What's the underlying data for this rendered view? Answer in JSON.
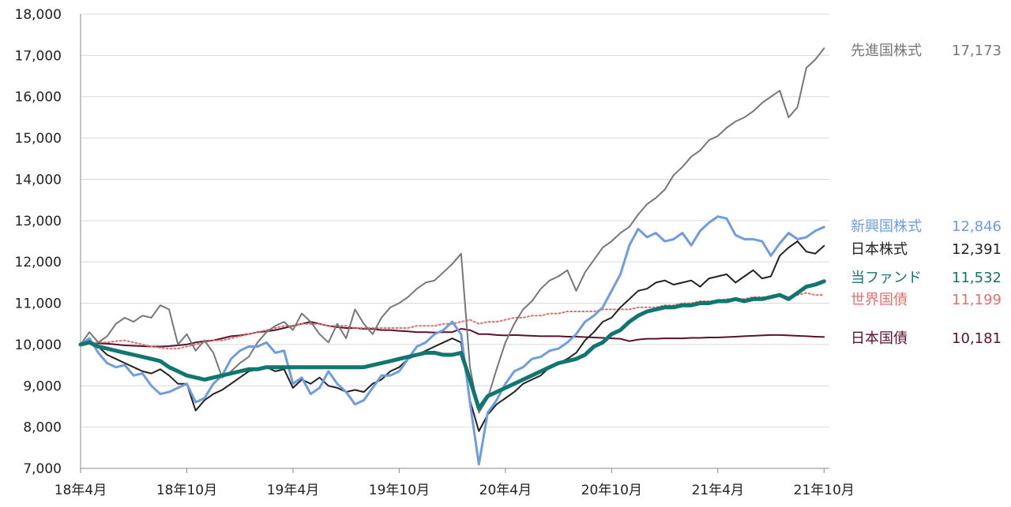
{
  "chart_data": {
    "type": "line",
    "title": "",
    "xlabel": "",
    "ylabel": "",
    "ylim": [
      7000,
      18000
    ],
    "y_ticks": [
      "7,000",
      "8,000",
      "9,000",
      "10,000",
      "11,000",
      "12,000",
      "13,000",
      "14,000",
      "15,000",
      "16,000",
      "17,000",
      "18,000"
    ],
    "x_ticks": [
      "18年4月",
      "18年10月",
      "19年4月",
      "19年10月",
      "20年4月",
      "20年10月",
      "21年4月",
      "21年10月"
    ],
    "grid": true,
    "legend": "right, end-of-line labels",
    "x_months": [
      0,
      0.5,
      1,
      1.5,
      2,
      2.5,
      3,
      3.5,
      4,
      4.5,
      5,
      5.5,
      6,
      6.5,
      7,
      7.5,
      8,
      8.5,
      9,
      9.5,
      10,
      10.5,
      11,
      11.5,
      12,
      12.5,
      13,
      13.5,
      14,
      14.5,
      15,
      15.5,
      16,
      16.5,
      17,
      17.5,
      18,
      18.5,
      19,
      19.5,
      20,
      20.5,
      21,
      21.5,
      22,
      22.5,
      23,
      23.5,
      24,
      24.5,
      25,
      25.5,
      26,
      26.5,
      27,
      27.5,
      28,
      28.5,
      29,
      29.5,
      30,
      30.5,
      31,
      31.5,
      32,
      32.5,
      33,
      33.5,
      34,
      34.5,
      35,
      35.5,
      36,
      36.5,
      37,
      37.5,
      38,
      38.5,
      39,
      39.5,
      40,
      40.5,
      41,
      41.5,
      42
    ],
    "series": [
      {
        "name": "先進国株式",
        "label": "先進国株式",
        "value_label": "17,173",
        "color": "#777777",
        "style": "solid",
        "width": 2,
        "values": [
          10000,
          10300,
          10050,
          10200,
          10500,
          10650,
          10550,
          10700,
          10650,
          10950,
          10850,
          10000,
          10250,
          9850,
          10100,
          9800,
          9200,
          9350,
          9550,
          9700,
          10050,
          10300,
          10450,
          10550,
          10350,
          10750,
          10550,
          10250,
          10050,
          10500,
          10150,
          10850,
          10500,
          10250,
          10650,
          10900,
          11000,
          11150,
          11350,
          11500,
          11550,
          11750,
          11950,
          12200,
          9450,
          8350,
          8700,
          9400,
          10050,
          10500,
          10850,
          11050,
          11350,
          11550,
          11650,
          11800,
          11300,
          11750,
          12050,
          12350,
          12500,
          12700,
          12850,
          13150,
          13400,
          13550,
          13750,
          14100,
          14300,
          14550,
          14700,
          14950,
          15050,
          15250,
          15400,
          15500,
          15650,
          15850,
          16000,
          16150,
          15500,
          15750,
          16700,
          16900,
          17173
        ]
      },
      {
        "name": "新興国株式",
        "label": "新興国株式",
        "value_label": "12,846",
        "color": "#6f9be0",
        "style": "solid",
        "width": 3,
        "values": [
          10000,
          10150,
          9800,
          9550,
          9450,
          9500,
          9250,
          9300,
          9000,
          8800,
          8850,
          8950,
          9050,
          8600,
          8700,
          9050,
          9250,
          9650,
          9850,
          9950,
          9950,
          10050,
          9800,
          9850,
          9050,
          9200,
          8800,
          8950,
          9350,
          9050,
          8850,
          8550,
          8650,
          8950,
          9250,
          9250,
          9350,
          9650,
          9950,
          10050,
          10250,
          10350,
          10550,
          10250,
          8600,
          7100,
          8350,
          8650,
          9050,
          9350,
          9450,
          9650,
          9700,
          9850,
          9900,
          10050,
          10250,
          10550,
          10700,
          10900,
          11300,
          11700,
          12400,
          12800,
          12600,
          12700,
          12500,
          12550,
          12700,
          12400,
          12750,
          12950,
          13100,
          13050,
          12650,
          12550,
          12550,
          12500,
          12150,
          12450,
          12700,
          12550,
          12600,
          12750,
          12846
        ]
      },
      {
        "name": "日本株式",
        "label": "日本株式",
        "value_label": "12,391",
        "color": "#222222",
        "style": "solid",
        "width": 2,
        "values": [
          10000,
          10100,
          9950,
          9750,
          9650,
          9550,
          9450,
          9350,
          9300,
          9400,
          9250,
          9050,
          9050,
          8400,
          8650,
          8800,
          8900,
          9050,
          9200,
          9350,
          9400,
          9450,
          9350,
          9400,
          8950,
          9150,
          9050,
          9200,
          9000,
          8950,
          8850,
          8900,
          8850,
          9050,
          9150,
          9350,
          9450,
          9650,
          9750,
          9850,
          9950,
          10050,
          10150,
          10050,
          8650,
          7900,
          8300,
          8550,
          8700,
          8850,
          9050,
          9150,
          9250,
          9450,
          9550,
          9650,
          9800,
          10100,
          10300,
          10550,
          10650,
          10900,
          11100,
          11300,
          11350,
          11500,
          11550,
          11450,
          11500,
          11550,
          11400,
          11600,
          11650,
          11700,
          11500,
          11650,
          11800,
          11600,
          11650,
          12150,
          12350,
          12500,
          12250,
          12200,
          12391
        ]
      },
      {
        "name": "当ファンド",
        "label": "当ファンド",
        "value_label": "11,532",
        "color": "#0f7670",
        "style": "solid",
        "width": 5,
        "values": [
          10000,
          10050,
          9950,
          9900,
          9850,
          9800,
          9750,
          9700,
          9650,
          9600,
          9450,
          9350,
          9250,
          9200,
          9150,
          9200,
          9250,
          9300,
          9350,
          9400,
          9400,
          9450,
          9450,
          9450,
          9450,
          9450,
          9450,
          9450,
          9450,
          9450,
          9450,
          9450,
          9450,
          9500,
          9550,
          9600,
          9650,
          9700,
          9750,
          9800,
          9800,
          9750,
          9750,
          9800,
          9150,
          8450,
          8750,
          8850,
          8950,
          9050,
          9150,
          9250,
          9350,
          9450,
          9550,
          9600,
          9650,
          9750,
          9950,
          10050,
          10250,
          10350,
          10550,
          10700,
          10800,
          10850,
          10900,
          10900,
          10950,
          10950,
          11000,
          11000,
          11050,
          11050,
          11100,
          11050,
          11100,
          11100,
          11150,
          11200,
          11100,
          11250,
          11400,
          11450,
          11532
        ]
      },
      {
        "name": "世界国債",
        "label": "世界国債",
        "value_label": "11,199",
        "color": "#e07070",
        "style": "dotted",
        "width": 2,
        "values": [
          10000,
          10020,
          10050,
          10050,
          10080,
          10100,
          10050,
          10000,
          9950,
          9920,
          9900,
          9900,
          9950,
          10000,
          10050,
          10100,
          10100,
          10150,
          10200,
          10250,
          10300,
          10350,
          10400,
          10450,
          10450,
          10500,
          10500,
          10500,
          10450,
          10450,
          10450,
          10400,
          10400,
          10400,
          10400,
          10400,
          10400,
          10400,
          10450,
          10450,
          10450,
          10500,
          10500,
          10550,
          10600,
          10500,
          10550,
          10550,
          10600,
          10650,
          10650,
          10700,
          10700,
          10750,
          10750,
          10800,
          10800,
          10800,
          10800,
          10850,
          10850,
          10850,
          10850,
          10900,
          10900,
          10900,
          10950,
          10950,
          11000,
          11000,
          11050,
          11050,
          11050,
          11100,
          11100,
          11100,
          11150,
          11150,
          11150,
          11200,
          11150,
          11200,
          11250,
          11200,
          11199
        ]
      },
      {
        "name": "日本国債",
        "label": "日本国債",
        "value_label": "10,181",
        "color": "#5a1030",
        "style": "solid",
        "width": 2,
        "values": [
          10000,
          10020,
          10030,
          10020,
          10000,
          9980,
          9970,
          9960,
          9950,
          9950,
          9960,
          9980,
          10000,
          10050,
          10080,
          10100,
          10150,
          10200,
          10220,
          10250,
          10300,
          10320,
          10350,
          10400,
          10450,
          10500,
          10550,
          10500,
          10450,
          10420,
          10400,
          10400,
          10380,
          10380,
          10350,
          10350,
          10330,
          10320,
          10300,
          10300,
          10290,
          10300,
          10300,
          10380,
          10350,
          10250,
          10250,
          10230,
          10220,
          10230,
          10220,
          10210,
          10200,
          10200,
          10200,
          10190,
          10190,
          10180,
          10170,
          10160,
          10150,
          10140,
          10080,
          10120,
          10140,
          10140,
          10150,
          10150,
          10150,
          10160,
          10160,
          10170,
          10170,
          10180,
          10190,
          10200,
          10210,
          10220,
          10230,
          10230,
          10220,
          10210,
          10200,
          10190,
          10181
        ]
      }
    ]
  }
}
